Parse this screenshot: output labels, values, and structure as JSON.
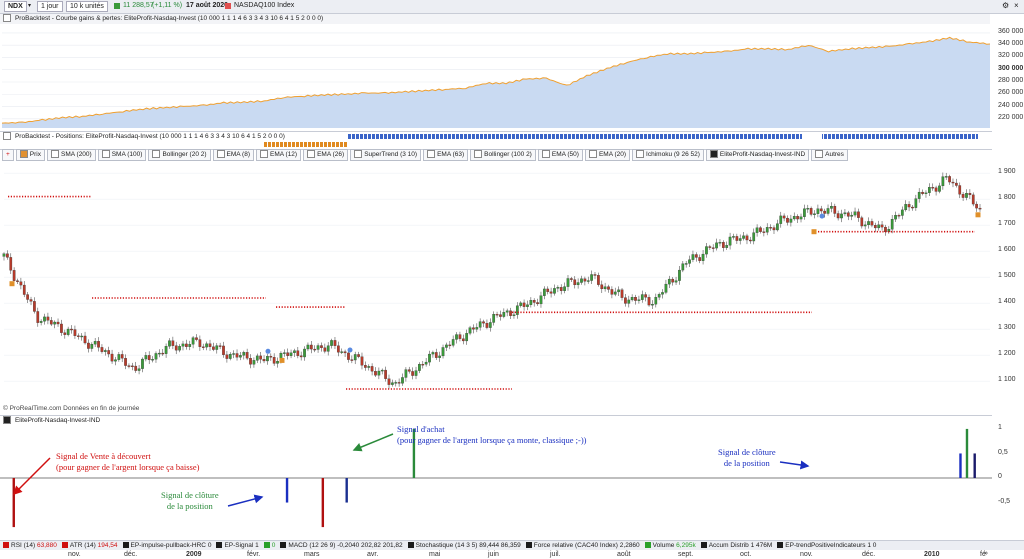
{
  "toolbar": {
    "symbol": "NDX",
    "period": "1 jour",
    "units": "10 k unités",
    "price": "11 288,57",
    "change": "(+1,11 %)",
    "date": "17 août 2020",
    "instrument": "NASDAQ100 Index"
  },
  "equity_panel": {
    "title": "ProBacktest - Courbe gains & pertes: EliteProfit-Nasdaq-Invest (10 000 1 1 1 4 6 3 3 4 3 10 6 4 1 5 2 0 0 0)",
    "y_ticks": [
      "360 000",
      "340 000",
      "320 000",
      "300 000",
      "280 000",
      "260 000",
      "240 000",
      "220 000"
    ],
    "highlight_tick": "300 000",
    "chart_data": {
      "type": "area",
      "x": [
        0,
        20,
        40,
        60,
        80,
        100,
        120,
        140,
        160,
        180,
        200,
        220,
        240,
        260,
        280,
        300,
        320,
        340,
        360,
        380,
        400,
        420,
        440,
        460,
        480,
        500,
        520,
        540,
        560,
        580,
        600,
        620,
        640,
        660,
        680,
        700,
        720,
        740,
        760,
        780,
        800,
        820,
        840,
        860,
        880,
        900,
        920,
        940,
        960,
        980
      ],
      "y": [
        213000,
        214000,
        218000,
        222000,
        224000,
        228000,
        232000,
        236000,
        238000,
        240000,
        242000,
        246000,
        247000,
        249000,
        255000,
        257000,
        259000,
        260000,
        262000,
        262000,
        264000,
        266000,
        268000,
        270000,
        278000,
        278000,
        285000,
        286000,
        274000,
        290000,
        302000,
        312000,
        320000,
        326000,
        326000,
        328000,
        330000,
        334000,
        334000,
        333000,
        340000,
        330000,
        334000,
        336000,
        338000,
        342000,
        346000,
        352000,
        345000,
        342000
      ],
      "ylim": [
        205000,
        368000
      ]
    }
  },
  "positions_panel": {
    "title": "ProBacktest - Positions: EliteProfit-Nasdaq-Invest (10 000 1 1 1 4 6 3 3 4 3 10 6 4 1 5 2 0 0 0)"
  },
  "indicator_chips": [
    "Prix",
    "SMA (200)",
    "SMA (100)",
    "Bollinger (20 2)",
    "EMA (8)",
    "EMA (12)",
    "EMA (26)",
    "SuperTrend (3 10)",
    "EMA (63)",
    "Bollinger (100 2)",
    "EMA (50)",
    "EMA (20)",
    "Ichimoku (9 26 52)",
    "EliteProfit-Nasdaq-Invest-IND",
    "Autres"
  ],
  "price_panel": {
    "y_ticks": [
      "1 900",
      "1 800",
      "1 700",
      "1 600",
      "1 500",
      "1 400",
      "1 300",
      "1 200",
      "1 100"
    ],
    "source_note": "© ProRealTime.com  Données en fin de journée",
    "chart_data": {
      "type": "line",
      "x": [
        0,
        10,
        20,
        30,
        40,
        50,
        60,
        70,
        80,
        90,
        100,
        110,
        120,
        130,
        140,
        150,
        160,
        170,
        180,
        190,
        200,
        210,
        220,
        230,
        240,
        250,
        260,
        270,
        280,
        290,
        300
      ],
      "y": [
        1580,
        1350,
        1290,
        1220,
        1150,
        1230,
        1250,
        1200,
        1180,
        1210,
        1240,
        1170,
        1090,
        1180,
        1270,
        1340,
        1390,
        1460,
        1500,
        1420,
        1410,
        1560,
        1630,
        1660,
        1720,
        1760,
        1740,
        1680,
        1800,
        1880,
        1760
      ],
      "ylim": [
        1020,
        1920
      ]
    }
  },
  "indicator_panel": {
    "title": "EliteProfit-Nasdaq-Invest-IND",
    "y_ticks": [
      "1",
      "0,5",
      "0",
      "-0,5"
    ],
    "chart_data": {
      "type": "bar",
      "x": [
        3,
        87,
        98,
        126,
        294,
        296
      ],
      "values": [
        -1,
        -0.5,
        -1,
        1,
        0.5,
        1
      ],
      "ylim": [
        -1.1,
        1.1
      ]
    }
  },
  "annotations": {
    "sell": [
      "Signal de Vente à découvert",
      "(pour gagner de l'argent lorsque ça baisse)"
    ],
    "buy": [
      "Signal d'achat",
      "(pour gagner de l'argent lorsque ça monte, classique ;-))"
    ],
    "close1": [
      "Signal de clôture",
      "de la position"
    ],
    "close2": [
      "Signal de clôture",
      "de la position"
    ]
  },
  "status_bar": [
    {
      "label": "RSI (14)",
      "value": "63,880",
      "color": "#d01010"
    },
    {
      "label": "ATR (14)",
      "value": "194,54",
      "color": "#d01010"
    },
    {
      "label": "EP-impulse-pullback-HRC",
      "value": "0",
      "color": "#1a1a1a"
    },
    {
      "label": "EP-Signal",
      "value": "1",
      "color": "#1a1a1a"
    },
    {
      "label": "",
      "value": "0",
      "color": "#2aa02a"
    },
    {
      "label": "MACD (12 26 9)",
      "value": "-0,2040  202,82  201,82",
      "color": "#1a1a1a"
    },
    {
      "label": "Stochastique (14 3 5)",
      "value": "89,444  86,359",
      "color": "#1a1a1a"
    },
    {
      "label": "Force relative (CAC40 Index)",
      "value": "2,2860",
      "color": "#1a1a1a"
    },
    {
      "label": "Volume",
      "value": "6,295k",
      "color": "#2aa02a"
    },
    {
      "label": "Accum Distrib",
      "value": "1 476M",
      "color": "#1a1a1a"
    },
    {
      "label": "EP-trendPositiveIndicateurs",
      "value": "1  0",
      "color": "#1a1a1a"
    }
  ],
  "x_axis": [
    "nov.",
    "déc.",
    "2009",
    "févr.",
    "mars",
    "avr.",
    "mai",
    "juin",
    "juil.",
    "août",
    "sept.",
    "oct.",
    "nov.",
    "déc.",
    "2010",
    "fé"
  ],
  "colors": {
    "up": "#3a9a3a",
    "down": "#b83a2a",
    "area": "#c9daf2",
    "area_line": "#f0a030",
    "blue": "#1a2fc0",
    "red": "#d01010",
    "green": "#2a8a3a"
  }
}
